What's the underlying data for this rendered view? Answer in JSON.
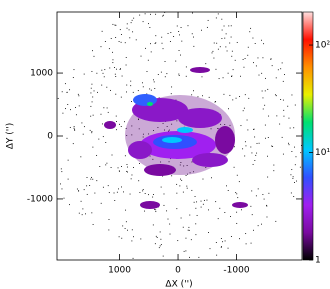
{
  "chart_data": {
    "type": "heatmap",
    "xlabel": "ΔX ('')",
    "ylabel": "ΔY ('')",
    "xlim": [
      2070,
      -2120
    ],
    "xticks": [
      1000,
      0,
      -1000
    ],
    "ylim": [
      -1970,
      1970
    ],
    "yticks": [
      -1000,
      0,
      1000
    ],
    "colorbar": {
      "lim": [
        1,
        203
      ],
      "log": true,
      "ticks": [
        1,
        {
          "value": 10,
          "label": "10¹"
        },
        {
          "value": 100,
          "label": "10²"
        }
      ],
      "colors": [
        "#000000",
        "#7a0aa0",
        "#a020f0",
        "#3050ff",
        "#00c8ff",
        "#00e070",
        "#e8f000",
        "#ff9000",
        "#ff1000",
        "#ffe0e0"
      ]
    }
  }
}
